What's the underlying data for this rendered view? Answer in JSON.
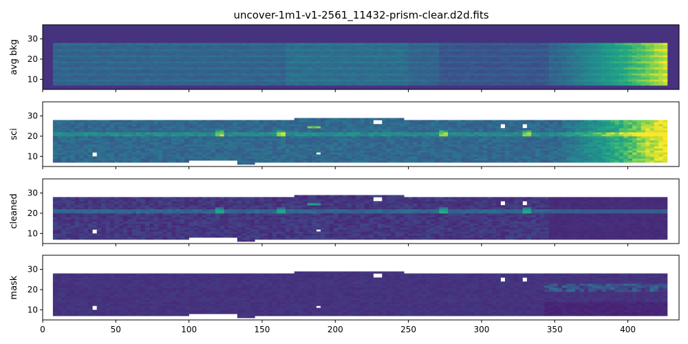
{
  "title": "uncover-1m1-v1-2561_11432-prism-clear.d2d.fits",
  "chart_data": {
    "type": "heatmap",
    "colormap": "viridis",
    "xlim": [
      0,
      435
    ],
    "ylim": [
      5,
      37
    ],
    "xticks": [
      0,
      50,
      100,
      150,
      200,
      250,
      300,
      350,
      400
    ],
    "yticks": [
      10,
      20,
      30
    ],
    "panels": [
      {
        "ylabel": "avg bkg",
        "background": "#46327e"
      },
      {
        "ylabel": "sci"
      },
      {
        "ylabel": "cleaned"
      },
      {
        "ylabel": "mask"
      }
    ]
  }
}
